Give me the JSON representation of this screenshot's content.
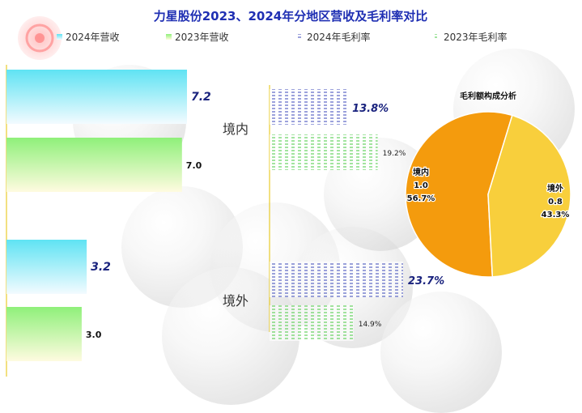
{
  "title": "力星股份2023、2024年分地区营收及毛利率对比",
  "legend": [
    {
      "label": "2024年营收",
      "marker": "rev2024"
    },
    {
      "label": "2023年营收",
      "marker": "rev2023"
    },
    {
      "label": "2024年毛利率",
      "marker": "gm2024"
    },
    {
      "label": "2023年毛利率",
      "marker": "gm2023"
    }
  ],
  "colors": {
    "title": "#1f2fb3",
    "rev2024_top": "#5fe3f3",
    "rev2024_bottom": "#f3fbff",
    "rev2023_top": "#8ff07a",
    "rev2023_bottom": "#fffbe0",
    "gm2024": "#3846b8",
    "gm2023": "#47c940",
    "axis": "#e5c100",
    "pie_domestic": "#f49b0d",
    "pie_overseas": "#f8cf3c"
  },
  "chart_data": [
    {
      "type": "bar",
      "orientation": "horizontal",
      "categories": [
        "境内",
        "境外"
      ],
      "series": [
        {
          "name": "2024年营收",
          "values": [
            7.2,
            3.2
          ]
        },
        {
          "name": "2023年营收",
          "values": [
            7.0,
            3.0
          ]
        }
      ],
      "xlim": [
        0,
        8
      ]
    },
    {
      "type": "bar",
      "orientation": "horizontal",
      "categories": [
        "境内",
        "境外"
      ],
      "series": [
        {
          "name": "2024年毛利率",
          "values": [
            13.8,
            23.7
          ]
        },
        {
          "name": "2023年毛利率",
          "values": [
            19.2,
            14.9
          ]
        }
      ],
      "value_labels": [
        [
          "13.8%",
          "23.7%"
        ],
        [
          "19.2%",
          "14.9%"
        ]
      ],
      "xlim": [
        0,
        30
      ]
    },
    {
      "type": "pie",
      "title": "毛利额构成分析",
      "slices": [
        {
          "label": "境内",
          "value": 1.0,
          "percent_label": "56.7%"
        },
        {
          "label": "境外",
          "value": 0.8,
          "percent_label": "43.3%"
        }
      ]
    }
  ]
}
